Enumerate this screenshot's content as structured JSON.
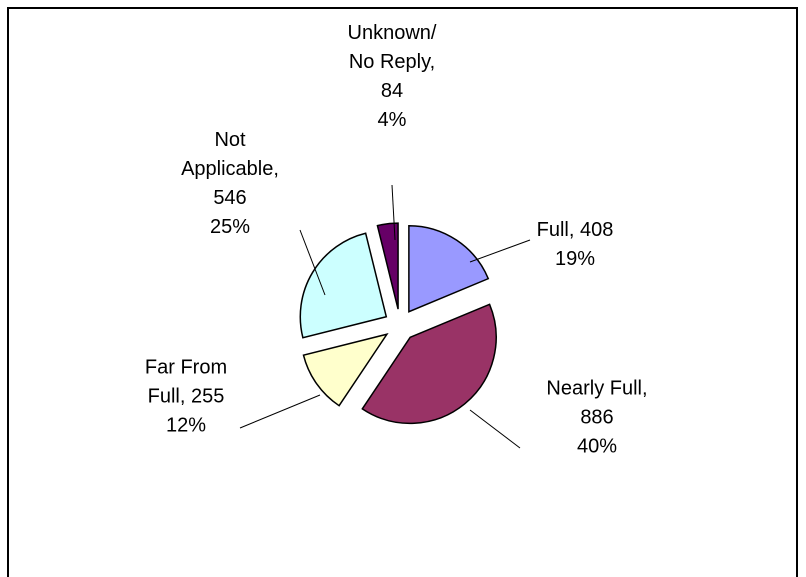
{
  "chart_data": {
    "type": "pie",
    "values": [
      408,
      886,
      255,
      546,
      84
    ],
    "value_labels": [
      [
        "Full, 408",
        "19%"
      ],
      [
        "Nearly Full,",
        "886",
        "40%"
      ],
      [
        "Far From",
        "Full, 255",
        "12%"
      ],
      [
        "Not",
        "Applicable,",
        "546",
        "25%"
      ],
      [
        "Unknown/",
        "No Reply,",
        "84",
        "4%"
      ]
    ],
    "colors": [
      "#9999ff",
      "#993366",
      "#ffffcc",
      "#ccffff",
      "#660066"
    ]
  }
}
